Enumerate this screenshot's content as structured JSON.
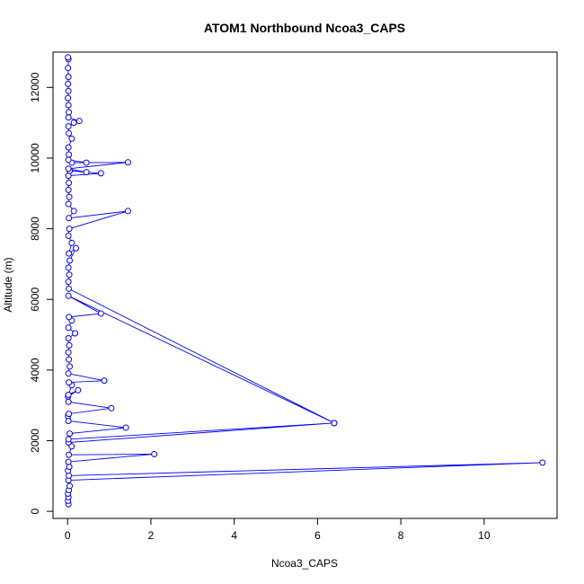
{
  "chart_data": {
    "type": "line",
    "title": "ATOM1 Northbound Ncoa3_CAPS",
    "xlabel": "Ncoa3_CAPS",
    "ylabel": "Altitude (m)",
    "xlim": [
      -0.35,
      11.75
    ],
    "ylim": [
      -200,
      13000
    ],
    "xticks": [
      0,
      2,
      4,
      6,
      8,
      10
    ],
    "yticks": [
      0,
      2000,
      4000,
      6000,
      8000,
      10000,
      12000
    ],
    "grid": false,
    "series": [
      {
        "color": "#0000ff",
        "marker": "open-circle",
        "points": [
          [
            0.02,
            200
          ],
          [
            0.01,
            300
          ],
          [
            0.02,
            400
          ],
          [
            0.01,
            500
          ],
          [
            0.03,
            600
          ],
          [
            0.05,
            720
          ],
          [
            0.02,
            880
          ],
          [
            11.4,
            1380
          ],
          [
            0.03,
            1010
          ],
          [
            0.01,
            1150
          ],
          [
            0.04,
            1260
          ],
          [
            0.02,
            1400
          ],
          [
            2.08,
            1620
          ],
          [
            0.03,
            1600
          ],
          [
            0.1,
            1840
          ],
          [
            0.02,
            1950
          ],
          [
            6.4,
            2500
          ],
          [
            0.02,
            2040
          ],
          [
            0.05,
            2200
          ],
          [
            1.4,
            2370
          ],
          [
            0.02,
            2560
          ],
          [
            0.01,
            2700
          ],
          [
            0.03,
            2760
          ],
          [
            1.05,
            2920
          ],
          [
            0.02,
            3100
          ],
          [
            0.01,
            3250
          ],
          [
            0.25,
            3430
          ],
          [
            0.02,
            3300
          ],
          [
            0.1,
            3570
          ],
          [
            0.03,
            3650
          ],
          [
            0.88,
            3700
          ],
          [
            0.02,
            3900
          ],
          [
            0.05,
            4100
          ],
          [
            0.03,
            4300
          ],
          [
            0.02,
            4500
          ],
          [
            0.04,
            4700
          ],
          [
            0.02,
            4900
          ],
          [
            0.18,
            5040
          ],
          [
            0.02,
            5200
          ],
          [
            0.1,
            5400
          ],
          [
            0.03,
            5500
          ],
          [
            0.8,
            5600
          ],
          [
            0.02,
            6100
          ],
          [
            6.4,
            2500
          ],
          [
            0.03,
            6300
          ],
          [
            0.02,
            6500
          ],
          [
            0.04,
            6700
          ],
          [
            0.02,
            6900
          ],
          [
            0.05,
            7100
          ],
          [
            0.2,
            7450
          ],
          [
            0.03,
            7300
          ],
          [
            0.1,
            7600
          ],
          [
            0.02,
            7800
          ],
          [
            0.04,
            8000
          ],
          [
            1.45,
            8500
          ],
          [
            0.03,
            8300
          ],
          [
            0.15,
            8500
          ],
          [
            0.02,
            8700
          ],
          [
            0.04,
            8900
          ],
          [
            0.02,
            9100
          ],
          [
            0.03,
            9300
          ],
          [
            0.02,
            9500
          ],
          [
            0.8,
            9570
          ],
          [
            0.05,
            9640
          ],
          [
            0.45,
            9600
          ],
          [
            0.02,
            9700
          ],
          [
            1.45,
            9880
          ],
          [
            0.1,
            9870
          ],
          [
            0.45,
            9870
          ],
          [
            0.02,
            9950
          ],
          [
            0.03,
            10100
          ],
          [
            0.02,
            10300
          ],
          [
            0.1,
            10550
          ],
          [
            0.03,
            10700
          ],
          [
            0.02,
            10900
          ],
          [
            0.15,
            11000
          ],
          [
            0.28,
            11050
          ],
          [
            0.02,
            11150
          ],
          [
            0.03,
            11300
          ],
          [
            0.02,
            11500
          ],
          [
            0.01,
            11700
          ],
          [
            0.02,
            11900
          ],
          [
            0.01,
            12100
          ],
          [
            0.02,
            12300
          ],
          [
            0.01,
            12550
          ],
          [
            0.02,
            12800
          ],
          [
            0.01,
            12850
          ]
        ]
      }
    ]
  }
}
